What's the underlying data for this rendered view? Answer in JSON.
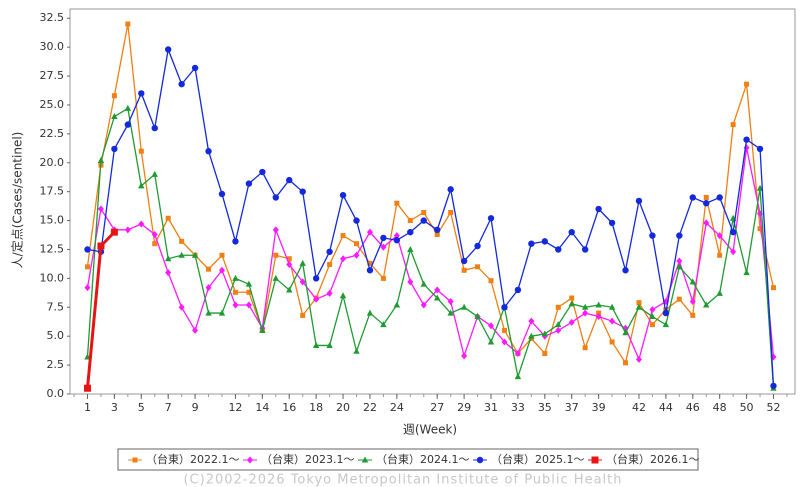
{
  "chart_data": {
    "type": "line",
    "xlabel": "週(Week)",
    "ylabel": "人/定点(Cases/sentinel)",
    "footer": "(C)2002-2026 Tokyo Metropolitan Institute of Public Health",
    "x": [
      1,
      2,
      3,
      4,
      5,
      6,
      7,
      8,
      9,
      10,
      11,
      12,
      13,
      14,
      15,
      16,
      17,
      18,
      19,
      20,
      21,
      22,
      23,
      24,
      25,
      26,
      27,
      28,
      29,
      30,
      31,
      32,
      33,
      34,
      35,
      36,
      37,
      38,
      39,
      40,
      41,
      42,
      43,
      44,
      45,
      46,
      47,
      48,
      49,
      50,
      51,
      52
    ],
    "xlim": [
      -0.3,
      53.6
    ],
    "xticks": [
      1,
      3,
      5,
      7,
      9,
      12,
      14,
      16,
      18,
      20,
      22,
      24,
      27,
      29,
      31,
      33,
      35,
      37,
      39,
      42,
      44,
      46,
      48,
      50,
      52
    ],
    "ylim": [
      0,
      33.3
    ],
    "yticks": [
      {
        "value": 0,
        "label": "0.0"
      },
      2.5,
      {
        "value": 5,
        "label": "5.0"
      },
      7.5,
      {
        "value": 10,
        "label": "10.0"
      },
      12.5,
      {
        "value": 15,
        "label": "15.0"
      },
      17.5,
      {
        "value": 20,
        "label": "20.0"
      },
      22.5,
      {
        "value": 25,
        "label": "25.0"
      },
      27.5,
      {
        "value": 30,
        "label": "30.0"
      },
      32.5
    ],
    "series": [
      {
        "name": "（台東）2022.1～",
        "color": "#f07f14",
        "marker": "square",
        "values": [
          11.0,
          19.8,
          25.8,
          32.0,
          21.0,
          13.0,
          15.2,
          13.2,
          12.0,
          10.8,
          12.0,
          8.8,
          8.8,
          5.5,
          12.0,
          11.7,
          6.8,
          8.3,
          11.2,
          13.7,
          13.0,
          11.3,
          10.0,
          16.5,
          15.0,
          15.7,
          13.8,
          15.7,
          10.7,
          11.0,
          9.8,
          5.5,
          3.5,
          4.8,
          3.5,
          7.5,
          8.3,
          4.0,
          7.0,
          4.5,
          2.7,
          7.9,
          6.0,
          7.3,
          8.2,
          6.8,
          17.0,
          12.0,
          23.3,
          26.8,
          14.3,
          9.2
        ]
      },
      {
        "name": "（台東）2023.1～",
        "color": "#ff19ff",
        "marker": "diamond",
        "values": [
          9.2,
          16.0,
          14.2,
          14.2,
          14.7,
          13.8,
          10.5,
          7.5,
          5.5,
          9.2,
          10.7,
          7.7,
          7.7,
          5.7,
          14.2,
          11.2,
          9.7,
          8.2,
          8.7,
          11.7,
          12.0,
          14.0,
          12.7,
          13.7,
          9.7,
          7.7,
          9.0,
          8.0,
          3.3,
          6.7,
          5.9,
          4.5,
          3.5,
          6.3,
          5.0,
          5.5,
          6.2,
          7.0,
          6.7,
          6.3,
          5.7,
          3.0,
          7.3,
          8.0,
          11.5,
          8.0,
          14.8,
          13.7,
          12.3,
          21.3,
          15.6,
          3.2
        ]
      },
      {
        "name": "（台東）2024.1～",
        "color": "#1e9b32",
        "marker": "triangle",
        "values": [
          3.2,
          20.2,
          24.0,
          24.7,
          18.0,
          19.0,
          11.7,
          12.0,
          12.0,
          7.0,
          7.0,
          10.0,
          9.5,
          5.5,
          10.0,
          9.0,
          11.3,
          4.2,
          4.2,
          8.5,
          3.7,
          7.0,
          6.0,
          7.7,
          12.5,
          9.5,
          8.3,
          7.0,
          7.5,
          6.7,
          4.5,
          7.5,
          1.5,
          5.0,
          5.2,
          6.0,
          7.8,
          7.5,
          7.7,
          7.5,
          5.3,
          7.5,
          6.7,
          6.0,
          11.0,
          9.7,
          7.7,
          8.7,
          15.2,
          10.5,
          17.8,
          0.5
        ]
      },
      {
        "name": "（台東）2025.1～",
        "color": "#1428dc",
        "marker": "circle",
        "values": [
          12.5,
          12.3,
          21.2,
          23.3,
          26.0,
          23.0,
          29.8,
          26.8,
          28.2,
          21.0,
          17.3,
          13.2,
          18.2,
          19.2,
          17.0,
          18.5,
          17.5,
          10.0,
          12.3,
          17.2,
          15.0,
          10.7,
          13.5,
          13.3,
          14.0,
          15.0,
          14.2,
          17.7,
          11.5,
          12.8,
          15.2,
          7.5,
          9.0,
          13.0,
          13.2,
          12.5,
          14.0,
          12.5,
          16.0,
          14.8,
          10.7,
          16.7,
          13.7,
          7.0,
          13.7,
          17.0,
          16.5,
          17.0,
          14.0,
          22.0,
          21.2,
          0.7
        ]
      },
      {
        "name": "（台東）2026.1～",
        "color": "#e61414",
        "marker": "bigsquare",
        "values": [
          0.5,
          12.8,
          14.0,
          null,
          null,
          null,
          null,
          null,
          null,
          null,
          null,
          null,
          null,
          null,
          null,
          null,
          null,
          null,
          null,
          null,
          null,
          null,
          null,
          null,
          null,
          null,
          null,
          null,
          null,
          null,
          null,
          null,
          null,
          null,
          null,
          null,
          null,
          null,
          null,
          null,
          null,
          null,
          null,
          null,
          null,
          null,
          null,
          null,
          null,
          null,
          null,
          null
        ]
      }
    ]
  }
}
